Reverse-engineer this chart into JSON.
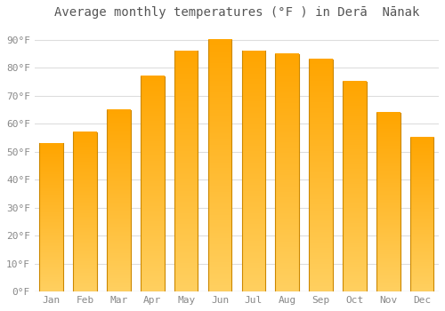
{
  "title": "Average monthly temperatures (°F ) in Derā  Nānak",
  "months": [
    "Jan",
    "Feb",
    "Mar",
    "Apr",
    "May",
    "Jun",
    "Jul",
    "Aug",
    "Sep",
    "Oct",
    "Nov",
    "Dec"
  ],
  "values": [
    53,
    57,
    65,
    77,
    86,
    90,
    86,
    85,
    83,
    75,
    64,
    55
  ],
  "bar_color_main": "#FFA500",
  "bar_color_light": "#FFD060",
  "bar_edge_color": "#CC8800",
  "ylim": [
    0,
    95
  ],
  "yticks": [
    0,
    10,
    20,
    30,
    40,
    50,
    60,
    70,
    80,
    90
  ],
  "ytick_labels": [
    "0°F",
    "10°F",
    "20°F",
    "30°F",
    "40°F",
    "50°F",
    "60°F",
    "70°F",
    "80°F",
    "90°F"
  ],
  "background_color": "#FFFFFF",
  "grid_color": "#DDDDDD",
  "title_fontsize": 10,
  "tick_fontsize": 8,
  "tick_color": "#888888"
}
